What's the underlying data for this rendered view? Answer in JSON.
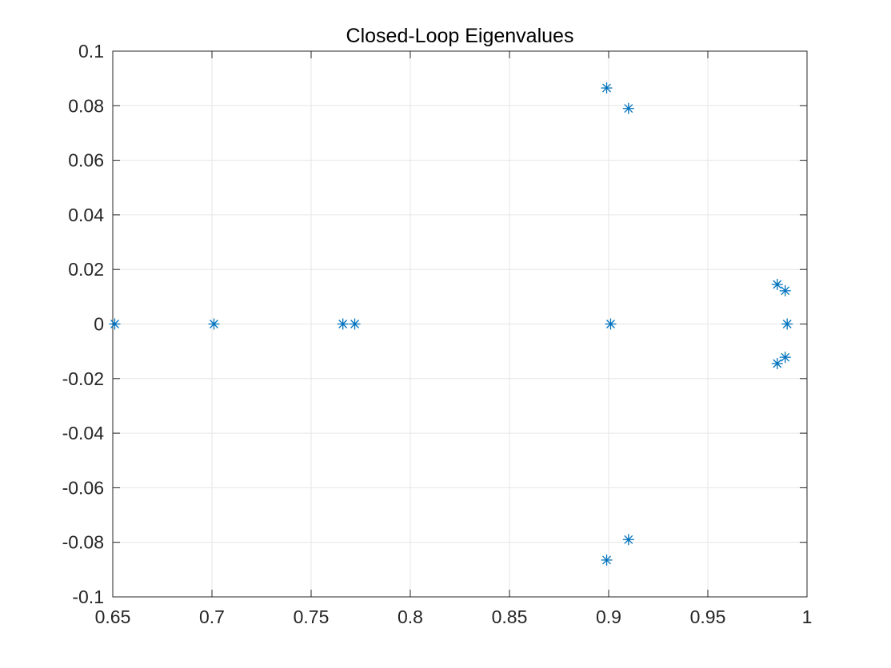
{
  "chart_data": {
    "type": "scatter",
    "title": "Closed-Loop Eigenvalues",
    "xlabel": "",
    "ylabel": "",
    "xlim": [
      0.65,
      1.0
    ],
    "ylim": [
      -0.1,
      0.1
    ],
    "xticks": [
      0.65,
      0.7,
      0.75,
      0.8,
      0.85,
      0.9,
      0.95,
      1.0
    ],
    "xtick_labels": [
      "0.65",
      "0.7",
      "0.75",
      "0.8",
      "0.85",
      "0.9",
      "0.95",
      "1"
    ],
    "yticks": [
      -0.1,
      -0.08,
      -0.06,
      -0.04,
      -0.02,
      0,
      0.02,
      0.04,
      0.06,
      0.08,
      0.1
    ],
    "ytick_labels": [
      "-0.1",
      "-0.08",
      "-0.06",
      "-0.04",
      "-0.02",
      "0",
      "0.02",
      "0.04",
      "0.06",
      "0.08",
      "0.1"
    ],
    "grid": true,
    "marker": "asterisk",
    "marker_color": "#0072BD",
    "series": [
      {
        "points": [
          {
            "x": 0.651,
            "y": 0.0
          },
          {
            "x": 0.701,
            "y": 0.0
          },
          {
            "x": 0.766,
            "y": 0.0
          },
          {
            "x": 0.772,
            "y": 0.0
          },
          {
            "x": 0.899,
            "y": 0.0865
          },
          {
            "x": 0.91,
            "y": 0.079
          },
          {
            "x": 0.901,
            "y": 0.0
          },
          {
            "x": 0.91,
            "y": -0.079
          },
          {
            "x": 0.899,
            "y": -0.0865
          },
          {
            "x": 0.985,
            "y": 0.0145
          },
          {
            "x": 0.989,
            "y": 0.0122
          },
          {
            "x": 0.99,
            "y": 0.0
          },
          {
            "x": 0.989,
            "y": -0.0122
          },
          {
            "x": 0.985,
            "y": -0.0145
          }
        ]
      }
    ]
  }
}
